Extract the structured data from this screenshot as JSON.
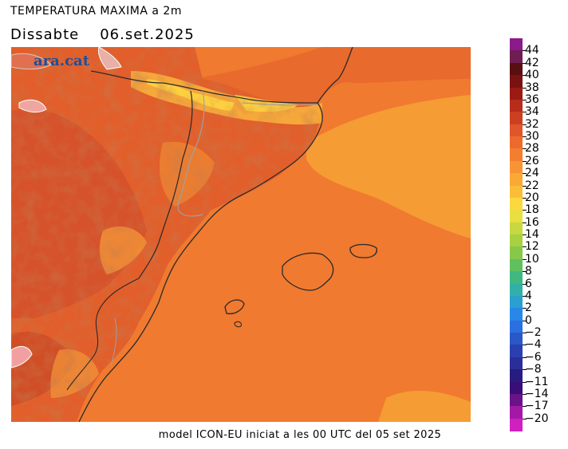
{
  "header": {
    "title": "TEMPERATURA MAXIMA a 2m",
    "day": "Dissabte",
    "date": "06.set.2025"
  },
  "map": {
    "logo": "ara.cat",
    "colors": {
      "sea": "#f07a30",
      "warm_sea": "#f59c34",
      "land_mid": "#e86a2c",
      "land_hot": "#d8502a",
      "land_cool": "#f6a83a",
      "highland": "#fcd040",
      "coastline": "#2a2a2a",
      "border": "#a0a0a0"
    }
  },
  "footer": {
    "text": "model ICON-EU iniciat a les 00 UTC del 05 set 2025"
  },
  "legend": {
    "labels": [
      "44",
      "42",
      "40",
      "38",
      "36",
      "34",
      "32",
      "30",
      "28",
      "26",
      "24",
      "22",
      "20",
      "18",
      "16",
      "14",
      "12",
      "10",
      "8",
      "6",
      "4",
      "2",
      "0",
      "−2",
      "−4",
      "−6",
      "−8",
      "−11",
      "−14",
      "−17",
      "−20"
    ],
    "colors": [
      "#8b1a8b",
      "#6e1e52",
      "#5a0e10",
      "#7a1212",
      "#9c1a14",
      "#b82c1c",
      "#cc3f20",
      "#e0552a",
      "#ec6a2c",
      "#f47e30",
      "#f89434",
      "#faa836",
      "#fbbd38",
      "#fcd840",
      "#e8e040",
      "#c8d840",
      "#a8d040",
      "#88c848",
      "#60c060",
      "#40b880",
      "#30b0a8",
      "#2aa0d0",
      "#2888e8",
      "#2a70e0",
      "#2a58c8",
      "#2a40b0",
      "#2a2e98",
      "#281c80",
      "#3a0e78",
      "#6a1288",
      "#a418a8",
      "#d020c0"
    ]
  }
}
